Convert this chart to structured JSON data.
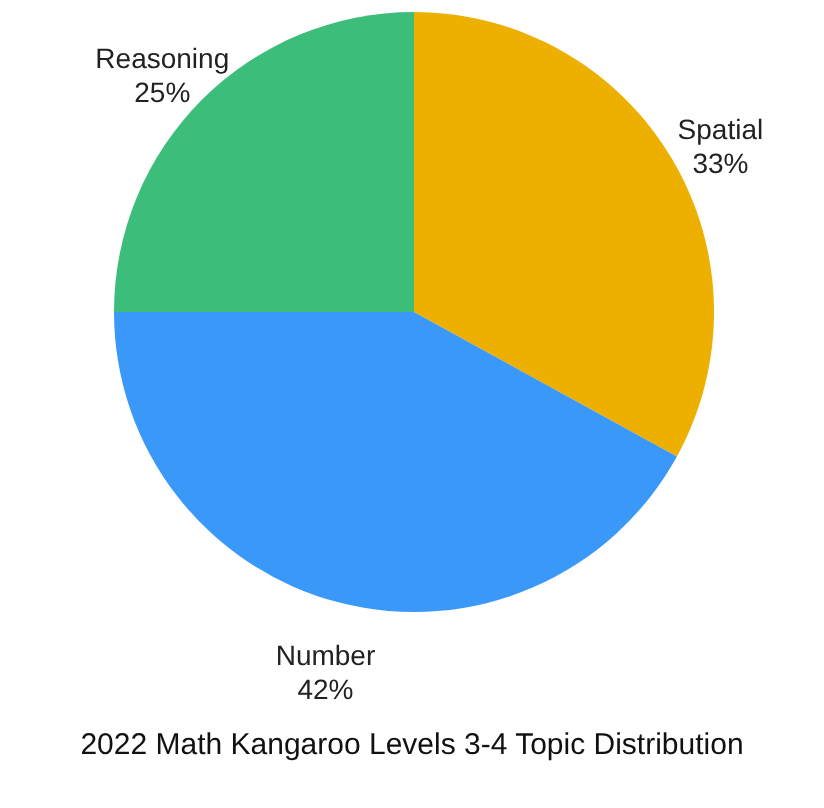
{
  "chart_data": {
    "type": "pie",
    "title": "2022 Math Kangaroo  Levels 3-4 Topic Distribution",
    "categories": [
      "Spatial",
      "Number",
      "Reasoning"
    ],
    "values": [
      33,
      42,
      25
    ],
    "value_labels": [
      "33%",
      "42%",
      "25%"
    ],
    "colors": [
      "#edb000",
      "#3a98f8",
      "#3cbd7a"
    ]
  }
}
